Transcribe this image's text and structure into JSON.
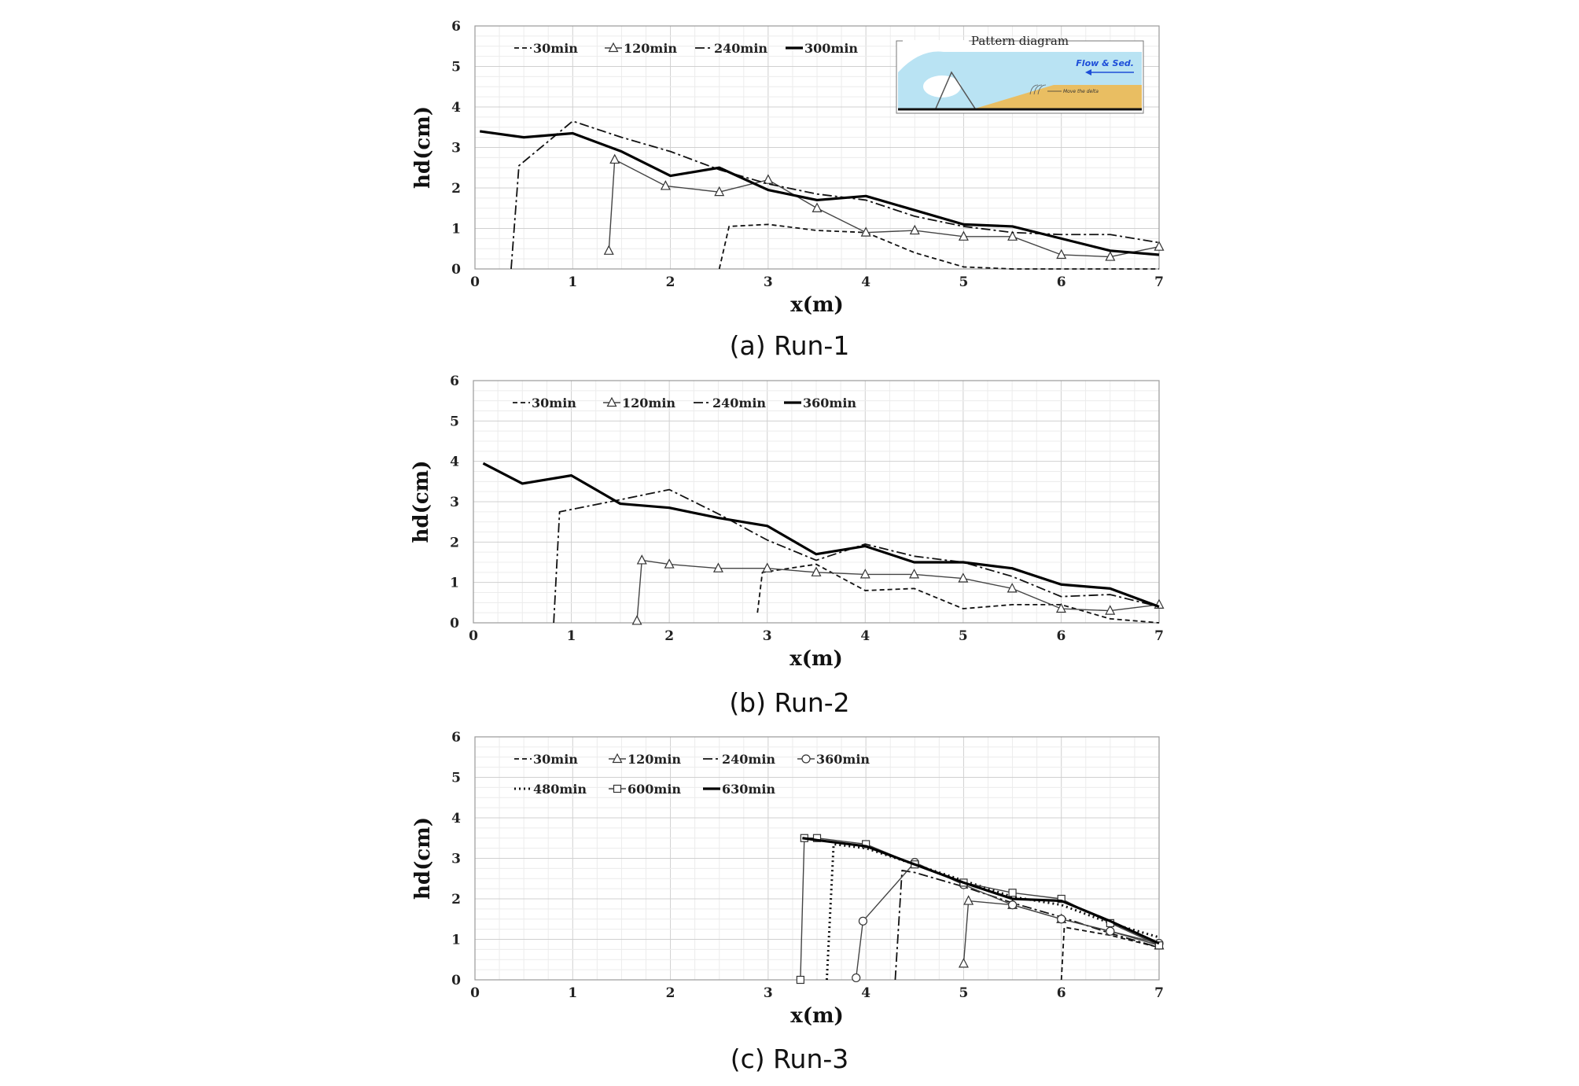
{
  "chart_data": [
    {
      "type": "line",
      "caption": "(a) Run-1",
      "xlabel": "x(m)",
      "ylabel": "hd(cm)",
      "xlim": [
        0,
        7
      ],
      "ylim": [
        0,
        6
      ],
      "xticks": [
        "0",
        "1",
        "2",
        "3",
        "4",
        "5",
        "6",
        "7"
      ],
      "yticks": [
        "0",
        "1",
        "2",
        "3",
        "4",
        "5",
        "6"
      ],
      "grid": true,
      "legend_position": "top-left",
      "inset": {
        "title": "Pattern diagram",
        "arrow_label": "Flow & Sed.",
        "delta_label": "Move the delta"
      },
      "series": [
        {
          "name": "30min",
          "style": "dashed",
          "marker": "none",
          "x": [
            2.5,
            2.6,
            3.0,
            3.5,
            4.0,
            4.5,
            5.0,
            5.5,
            6.0,
            6.5,
            7.0
          ],
          "y": [
            0.0,
            1.05,
            1.1,
            0.95,
            0.9,
            0.4,
            0.05,
            0.0,
            0.0,
            0.0,
            0.0
          ]
        },
        {
          "name": "120min",
          "style": "thin",
          "marker": "triangle",
          "x": [
            1.37,
            1.43,
            1.95,
            2.5,
            3.0,
            3.5,
            4.0,
            4.5,
            5.0,
            5.5,
            6.0,
            6.5,
            7.0
          ],
          "y": [
            0.45,
            2.7,
            2.05,
            1.9,
            2.2,
            1.5,
            0.9,
            0.95,
            0.8,
            0.8,
            0.35,
            0.3,
            0.55
          ]
        },
        {
          "name": "240min",
          "style": "dashdot",
          "marker": "none",
          "x": [
            0.37,
            0.45,
            1.0,
            1.5,
            2.0,
            2.5,
            3.0,
            3.5,
            4.0,
            4.5,
            5.0,
            5.5,
            6.0,
            6.5,
            7.0
          ],
          "y": [
            0.0,
            2.55,
            3.65,
            3.25,
            2.9,
            2.45,
            2.1,
            1.85,
            1.7,
            1.3,
            1.05,
            0.9,
            0.85,
            0.85,
            0.65
          ]
        },
        {
          "name": "300min",
          "style": "thick",
          "marker": "none",
          "x": [
            0.05,
            0.5,
            1.0,
            1.5,
            2.0,
            2.5,
            3.0,
            3.5,
            4.0,
            4.5,
            5.0,
            5.5,
            6.0,
            6.5,
            7.0
          ],
          "y": [
            3.4,
            3.25,
            3.35,
            2.9,
            2.3,
            2.5,
            1.95,
            1.7,
            1.8,
            1.45,
            1.1,
            1.05,
            0.75,
            0.45,
            0.35
          ]
        }
      ]
    },
    {
      "type": "line",
      "caption": "(b) Run-2",
      "xlabel": "x(m)",
      "ylabel": "hd(cm)",
      "xlim": [
        0,
        7
      ],
      "ylim": [
        0,
        6
      ],
      "xticks": [
        "0",
        "1",
        "2",
        "3",
        "4",
        "5",
        "6",
        "7"
      ],
      "yticks": [
        "0",
        "1",
        "2",
        "3",
        "4",
        "5",
        "6"
      ],
      "grid": true,
      "legend_position": "top-left",
      "series": [
        {
          "name": "30min",
          "style": "dashed",
          "marker": "none",
          "x": [
            2.9,
            2.95,
            3.5,
            4.0,
            4.5,
            5.0,
            5.5,
            6.0,
            6.5,
            7.0
          ],
          "y": [
            0.25,
            1.25,
            1.45,
            0.8,
            0.85,
            0.35,
            0.45,
            0.45,
            0.1,
            0.0
          ]
        },
        {
          "name": "120min",
          "style": "thin",
          "marker": "triangle",
          "x": [
            1.67,
            1.72,
            2.0,
            2.5,
            3.0,
            3.5,
            4.0,
            4.5,
            5.0,
            5.5,
            6.0,
            6.5,
            7.0
          ],
          "y": [
            0.05,
            1.55,
            1.45,
            1.35,
            1.35,
            1.25,
            1.2,
            1.2,
            1.1,
            0.85,
            0.35,
            0.3,
            0.45
          ]
        },
        {
          "name": "240min",
          "style": "dashdot",
          "marker": "none",
          "x": [
            0.82,
            0.88,
            1.5,
            2.0,
            2.5,
            3.0,
            3.5,
            4.0,
            4.5,
            5.0,
            5.5,
            6.0,
            6.5,
            7.0
          ],
          "y": [
            0.0,
            2.75,
            3.05,
            3.3,
            2.7,
            2.05,
            1.55,
            1.95,
            1.65,
            1.5,
            1.15,
            0.65,
            0.7,
            0.4
          ]
        },
        {
          "name": "360min",
          "style": "thick",
          "marker": "none",
          "x": [
            0.1,
            0.5,
            1.0,
            1.5,
            2.0,
            2.5,
            3.0,
            3.5,
            4.0,
            4.5,
            5.0,
            5.5,
            6.0,
            6.5,
            7.0
          ],
          "y": [
            3.95,
            3.45,
            3.65,
            2.95,
            2.85,
            2.6,
            2.4,
            1.7,
            1.9,
            1.5,
            1.5,
            1.35,
            0.95,
            0.85,
            0.4
          ]
        }
      ]
    },
    {
      "type": "line",
      "caption": "(c) Run-3",
      "xlabel": "x(m)",
      "ylabel": "hd(cm)",
      "xlim": [
        0,
        7
      ],
      "ylim": [
        0,
        6
      ],
      "xticks": [
        "0",
        "1",
        "2",
        "3",
        "4",
        "5",
        "6",
        "7"
      ],
      "yticks": [
        "0",
        "1",
        "2",
        "3",
        "4",
        "5",
        "6"
      ],
      "grid": true,
      "legend_position": "top-left",
      "series": [
        {
          "name": "30min",
          "style": "dashed",
          "marker": "none",
          "x": [
            6.0,
            6.03,
            6.5,
            7.0
          ],
          "y": [
            0.0,
            1.3,
            1.1,
            0.8
          ]
        },
        {
          "name": "120min",
          "style": "thin",
          "marker": "triangle",
          "x": [
            5.0,
            5.05,
            5.5,
            6.0,
            6.5,
            7.0
          ],
          "y": [
            0.4,
            1.95,
            1.85,
            1.5,
            1.2,
            0.85
          ]
        },
        {
          "name": "240min",
          "style": "dashdot",
          "marker": "none",
          "x": [
            4.3,
            4.37,
            4.5,
            5.0,
            5.5,
            6.0,
            6.5,
            7.0
          ],
          "y": [
            0.0,
            2.7,
            2.65,
            2.3,
            1.9,
            1.55,
            1.15,
            0.8
          ]
        },
        {
          "name": "360min",
          "style": "thin",
          "marker": "circle",
          "x": [
            3.9,
            3.97,
            4.5,
            5.0,
            5.5,
            6.0,
            6.5,
            7.0
          ],
          "y": [
            0.05,
            1.45,
            2.9,
            2.35,
            1.85,
            1.5,
            1.2,
            0.9
          ]
        },
        {
          "name": "480min",
          "style": "dotted",
          "marker": "none",
          "x": [
            3.6,
            3.67,
            4.0,
            4.5,
            5.0,
            5.5,
            6.0,
            6.5,
            7.0
          ],
          "y": [
            0.0,
            3.35,
            3.25,
            2.85,
            2.45,
            2.05,
            1.85,
            1.4,
            1.05
          ]
        },
        {
          "name": "600min",
          "style": "thin",
          "marker": "square",
          "x": [
            3.33,
            3.37,
            3.5,
            4.0,
            4.5,
            5.0,
            5.5,
            6.0,
            6.5,
            7.0
          ],
          "y": [
            0.0,
            3.5,
            3.5,
            3.35,
            2.85,
            2.4,
            2.15,
            2.0,
            1.4,
            0.85
          ]
        },
        {
          "name": "630min",
          "style": "thick",
          "marker": "none",
          "x": [
            3.35,
            3.5,
            4.0,
            4.5,
            5.0,
            5.5,
            6.0,
            6.5,
            7.0
          ],
          "y": [
            3.5,
            3.45,
            3.3,
            2.85,
            2.4,
            2.0,
            1.95,
            1.45,
            0.9
          ]
        }
      ]
    }
  ]
}
